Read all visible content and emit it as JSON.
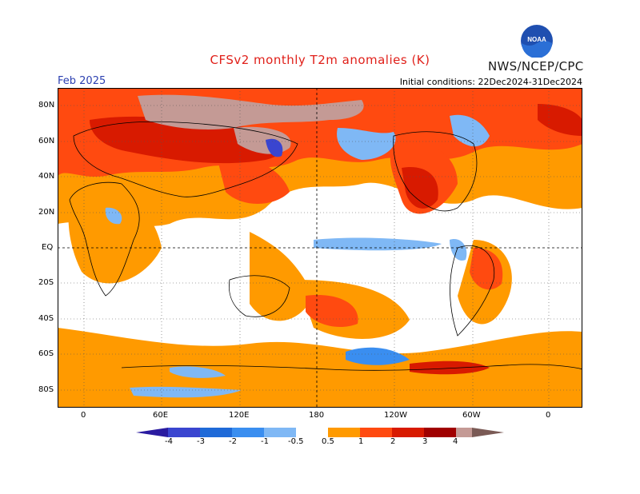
{
  "header": {
    "title": "CFSv2 monthly T2m anomalies (K)",
    "agency": "NWS/NCEP/CPC",
    "month": "Feb 2025",
    "initial_conditions": "Initial conditions: 22Dec2024-31Dec2024",
    "logo_text": "NOAA"
  },
  "axes": {
    "lat_labels": [
      "80N",
      "60N",
      "40N",
      "20N",
      "EQ",
      "20S",
      "40S",
      "60S",
      "80S"
    ],
    "lon_labels": [
      "0",
      "60E",
      "120E",
      "180",
      "120W",
      "60W",
      "0"
    ]
  },
  "colorbar": {
    "labels": [
      "-4",
      "-3",
      "-2",
      "-1",
      "-0.5",
      "0.5",
      "1",
      "2",
      "3",
      "4"
    ],
    "colors": [
      "#2a1ba0",
      "#3a45d0",
      "#1f6ad8",
      "#3a8ef0",
      "#7fb8f5",
      "#ffffff",
      "#ff9a00",
      "#ff4a10",
      "#d81a00",
      "#a00000",
      "#c49a95",
      "#7a5a55"
    ]
  }
}
